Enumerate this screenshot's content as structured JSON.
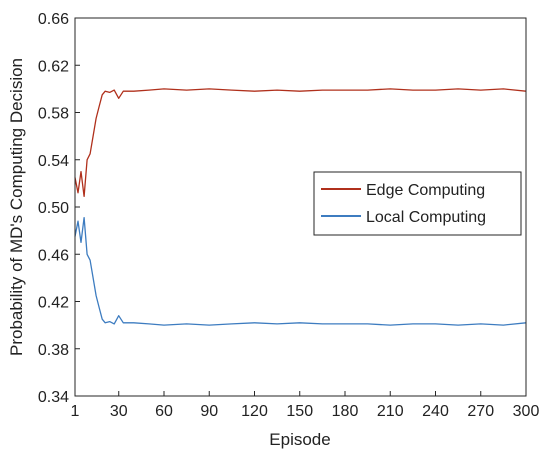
{
  "chart_data": {
    "type": "line",
    "title": "",
    "xlabel": "Episode",
    "ylabel": "Probability of MD's Computing Decision",
    "xlim": [
      1,
      300
    ],
    "ylim": [
      0.34,
      0.66
    ],
    "xticks": [
      1,
      30,
      60,
      90,
      120,
      150,
      180,
      210,
      240,
      270,
      300
    ],
    "yticks": [
      0.34,
      0.38,
      0.42,
      0.46,
      0.5,
      0.54,
      0.58,
      0.62,
      0.66
    ],
    "xtick_labels": [
      "1",
      "30",
      "60",
      "90",
      "120",
      "150",
      "180",
      "210",
      "240",
      "270",
      "300"
    ],
    "ytick_labels": [
      "0.34",
      "0.38",
      "0.42",
      "0.46",
      "0.50",
      "0.54",
      "0.58",
      "0.62",
      "0.66"
    ],
    "grid": false,
    "legend_position": "right-middle",
    "series": [
      {
        "name": "Edge Computing",
        "color": "#b0301c",
        "x": [
          1,
          3,
          5,
          7,
          9,
          11,
          13,
          15,
          17,
          19,
          21,
          24,
          27,
          30,
          33,
          40,
          50,
          60,
          75,
          90,
          105,
          120,
          135,
          150,
          165,
          180,
          195,
          210,
          225,
          240,
          255,
          270,
          285,
          300
        ],
        "y": [
          0.525,
          0.512,
          0.53,
          0.509,
          0.54,
          0.545,
          0.56,
          0.575,
          0.585,
          0.595,
          0.598,
          0.597,
          0.599,
          0.592,
          0.598,
          0.598,
          0.599,
          0.6,
          0.599,
          0.6,
          0.599,
          0.598,
          0.599,
          0.598,
          0.599,
          0.599,
          0.599,
          0.6,
          0.599,
          0.599,
          0.6,
          0.599,
          0.6,
          0.598
        ]
      },
      {
        "name": "Local Computing",
        "color": "#3d7cc0",
        "x": [
          1,
          3,
          5,
          7,
          9,
          11,
          13,
          15,
          17,
          19,
          21,
          24,
          27,
          30,
          33,
          40,
          50,
          60,
          75,
          90,
          105,
          120,
          135,
          150,
          165,
          180,
          195,
          210,
          225,
          240,
          255,
          270,
          285,
          300
        ],
        "y": [
          0.475,
          0.488,
          0.47,
          0.491,
          0.46,
          0.455,
          0.44,
          0.425,
          0.415,
          0.405,
          0.402,
          0.403,
          0.401,
          0.408,
          0.402,
          0.402,
          0.401,
          0.4,
          0.401,
          0.4,
          0.401,
          0.402,
          0.401,
          0.402,
          0.401,
          0.401,
          0.401,
          0.4,
          0.401,
          0.401,
          0.4,
          0.401,
          0.4,
          0.402
        ]
      }
    ]
  }
}
